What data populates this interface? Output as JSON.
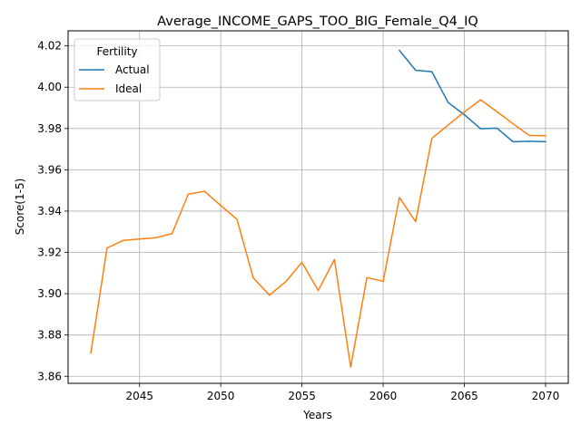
{
  "chart_data": {
    "type": "line",
    "title": "Average_INCOME_GAPS_TOO_BIG_Female_Q4_IQ",
    "xlabel": "Years",
    "ylabel": "Score(1-5)",
    "xlim": [
      2040.6,
      2071.4
    ],
    "ylim": [
      3.8566,
      4.0273
    ],
    "xticks": [
      2045,
      2050,
      2055,
      2060,
      2065,
      2070
    ],
    "yticks": [
      3.86,
      3.88,
      3.9,
      3.92,
      3.94,
      3.96,
      3.98,
      4.0,
      4.02
    ],
    "ytick_labels": [
      "3.86",
      "3.88",
      "3.90",
      "3.92",
      "3.94",
      "3.96",
      "3.98",
      "4.00",
      "4.02"
    ],
    "grid": true,
    "legend": {
      "title": "Fertility",
      "position": "top-left"
    },
    "series": [
      {
        "name": "Actual",
        "color": "#1f77b4",
        "x": [
          2061,
          2062,
          2063,
          2064,
          2065,
          2066,
          2067,
          2068,
          2069,
          2070
        ],
        "y": [
          4.0178,
          4.0082,
          4.0075,
          3.9926,
          3.9867,
          3.9799,
          3.9802,
          3.9736,
          3.9738,
          3.9736
        ]
      },
      {
        "name": "Ideal",
        "color": "#ff7f0e",
        "x": [
          2042,
          2043,
          2044,
          2045,
          2046,
          2047,
          2048,
          2049,
          2050,
          2051,
          2052,
          2053,
          2054,
          2055,
          2056,
          2057,
          2058,
          2059,
          2060,
          2061,
          2062,
          2063,
          2064,
          2065,
          2066,
          2067,
          2068,
          2069,
          2070
        ],
        "y": [
          3.8713,
          3.9222,
          3.9258,
          3.9265,
          3.9271,
          3.9291,
          3.9482,
          3.9496,
          3.9427,
          3.936,
          3.9077,
          3.8993,
          3.9058,
          3.9152,
          3.9015,
          3.9166,
          3.8645,
          3.9078,
          3.906,
          3.9466,
          3.9349,
          3.9752,
          3.9817,
          3.988,
          3.9939,
          3.9882,
          3.9823,
          3.9766,
          3.9765
        ]
      }
    ]
  }
}
